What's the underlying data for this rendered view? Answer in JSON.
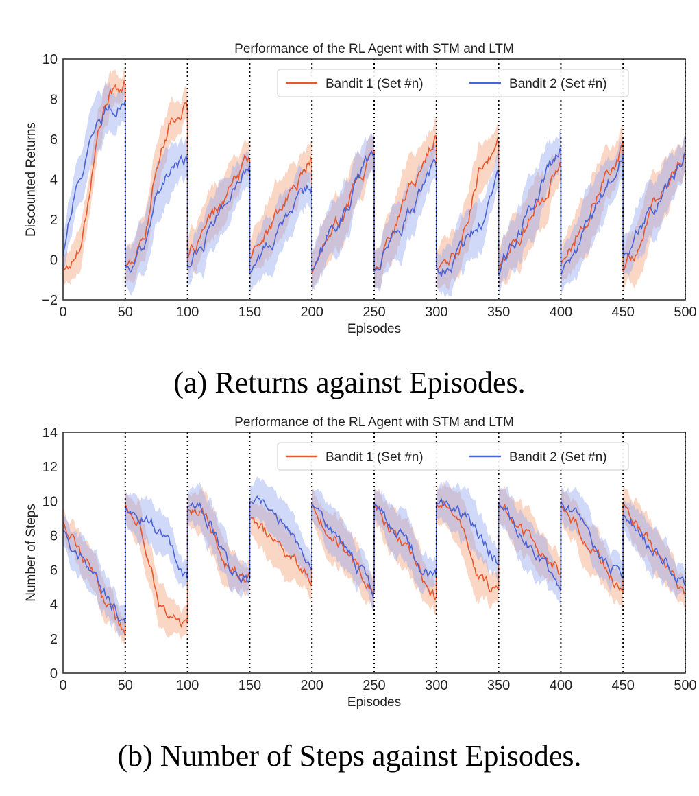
{
  "colors": {
    "bandit1": "#e8582c",
    "bandit1_fill": "#f4a57f",
    "bandit2": "#4a63d6",
    "bandit2_fill": "#9aaaf0",
    "axis": "#222222",
    "divider": "#000000"
  },
  "captions": {
    "a": "(a) Returns against Episodes.",
    "b": "(b) Number of Steps against Episodes."
  },
  "chart_data": [
    {
      "type": "line",
      "title": "Performance of the RL Agent with STM and LTM",
      "xlabel": "Episodes",
      "ylabel": "Discounted Returns",
      "xlim": [
        0,
        500
      ],
      "ylim": [
        -2,
        10
      ],
      "xticks": [
        0,
        50,
        100,
        150,
        200,
        250,
        300,
        350,
        400,
        450,
        500
      ],
      "yticks": [
        -2,
        0,
        2,
        4,
        6,
        8,
        10
      ],
      "ytick_labels": [
        "−2",
        "0",
        "2",
        "4",
        "6",
        "8",
        "10"
      ],
      "vertical_dividers": [
        50,
        100,
        150,
        200,
        250,
        300,
        350,
        400,
        450,
        500
      ],
      "legend": {
        "placement": "top-right",
        "columns": 2
      },
      "grid": false,
      "band": "shaded variability band around each series",
      "series": [
        {
          "name": "Bandit 1 (Set #n)",
          "color": "bandit1",
          "segments": [
            {
              "start": 0,
              "end": 50,
              "y0": -0.5,
              "y1": 8.7,
              "shape": "sigmoid",
              "mid": 0.45,
              "band": 1.0
            },
            {
              "start": 50,
              "end": 100,
              "y0": -0.3,
              "y1": 7.5,
              "shape": "sigmoid",
              "mid": 0.45,
              "band": 1.1
            },
            {
              "start": 100,
              "end": 150,
              "y0": 0.0,
              "y1": 5.0,
              "shape": "linear",
              "mid": 0.5,
              "band": 1.2
            },
            {
              "start": 150,
              "end": 200,
              "y0": 0.0,
              "y1": 5.0,
              "shape": "linear",
              "mid": 0.5,
              "band": 1.3
            },
            {
              "start": 200,
              "end": 250,
              "y0": -0.7,
              "y1": 5.5,
              "shape": "linear",
              "mid": 0.5,
              "band": 1.3
            },
            {
              "start": 250,
              "end": 300,
              "y0": -0.5,
              "y1": 6.2,
              "shape": "linear",
              "mid": 0.5,
              "band": 1.3
            },
            {
              "start": 300,
              "end": 350,
              "y0": -0.4,
              "y1": 5.8,
              "shape": "sigmoid",
              "mid": 0.55,
              "band": 1.3
            },
            {
              "start": 350,
              "end": 400,
              "y0": -0.5,
              "y1": 4.6,
              "shape": "linear",
              "mid": 0.5,
              "band": 1.4
            },
            {
              "start": 400,
              "end": 450,
              "y0": -0.3,
              "y1": 5.8,
              "shape": "linear",
              "mid": 0.5,
              "band": 1.4
            },
            {
              "start": 450,
              "end": 500,
              "y0": -0.6,
              "y1": 5.4,
              "shape": "linear",
              "mid": 0.5,
              "band": 1.4
            }
          ]
        },
        {
          "name": "Bandit 2 (Set #n)",
          "color": "bandit2",
          "segments": [
            {
              "start": 0,
              "end": 50,
              "y0": 0.2,
              "y1": 7.9,
              "shape": "concave",
              "mid": 0.3,
              "band": 1.3
            },
            {
              "start": 50,
              "end": 100,
              "y0": -0.4,
              "y1": 4.8,
              "shape": "sigmoid",
              "mid": 0.45,
              "band": 1.4
            },
            {
              "start": 100,
              "end": 150,
              "y0": -0.4,
              "y1": 4.9,
              "shape": "linear",
              "mid": 0.5,
              "band": 1.2
            },
            {
              "start": 150,
              "end": 200,
              "y0": -0.7,
              "y1": 3.7,
              "shape": "linear",
              "mid": 0.5,
              "band": 1.3
            },
            {
              "start": 200,
              "end": 250,
              "y0": -0.6,
              "y1": 5.3,
              "shape": "linear",
              "mid": 0.5,
              "band": 1.3
            },
            {
              "start": 250,
              "end": 300,
              "y0": -0.6,
              "y1": 4.5,
              "shape": "linear",
              "mid": 0.5,
              "band": 1.3
            },
            {
              "start": 300,
              "end": 350,
              "y0": -0.4,
              "y1": 3.9,
              "shape": "convex",
              "mid": 0.6,
              "band": 1.3
            },
            {
              "start": 350,
              "end": 400,
              "y0": -0.8,
              "y1": 5.6,
              "shape": "linear",
              "mid": 0.5,
              "band": 1.4
            },
            {
              "start": 400,
              "end": 450,
              "y0": -0.8,
              "y1": 5.2,
              "shape": "linear",
              "mid": 0.5,
              "band": 1.4
            },
            {
              "start": 450,
              "end": 500,
              "y0": 0.1,
              "y1": 5.2,
              "shape": "linear",
              "mid": 0.5,
              "band": 1.4
            }
          ]
        }
      ]
    },
    {
      "type": "line",
      "title": "Performance of the RL Agent with STM and LTM",
      "xlabel": "Episodes",
      "ylabel": "Number of Steps",
      "xlim": [
        0,
        500
      ],
      "ylim": [
        0,
        14
      ],
      "xticks": [
        0,
        50,
        100,
        150,
        200,
        250,
        300,
        350,
        400,
        450,
        500
      ],
      "yticks": [
        0,
        2,
        4,
        6,
        8,
        10,
        12,
        14
      ],
      "ytick_labels": [
        "0",
        "2",
        "4",
        "6",
        "8",
        "10",
        "12",
        "14"
      ],
      "vertical_dividers": [
        50,
        100,
        150,
        200,
        250,
        300,
        350,
        400,
        450,
        500
      ],
      "legend": {
        "placement": "top-right",
        "columns": 2
      },
      "grid": false,
      "band": "shaded variability band around each series",
      "series": [
        {
          "name": "Bandit 1 (Set #n)",
          "color": "bandit1",
          "segments": [
            {
              "start": 0,
              "end": 50,
              "y0": 8.8,
              "y1": 2.1,
              "shape": "linear",
              "mid": 0.5,
              "band": 1.0
            },
            {
              "start": 50,
              "end": 100,
              "y0": 9.8,
              "y1": 2.9,
              "shape": "sigmoid",
              "mid": 0.4,
              "band": 1.2
            },
            {
              "start": 100,
              "end": 150,
              "y0": 9.5,
              "y1": 5.5,
              "shape": "sigmoid",
              "mid": 0.5,
              "band": 1.2
            },
            {
              "start": 150,
              "end": 200,
              "y0": 9.0,
              "y1": 5.6,
              "shape": "linear",
              "mid": 0.5,
              "band": 1.4
            },
            {
              "start": 200,
              "end": 250,
              "y0": 9.8,
              "y1": 4.9,
              "shape": "linear",
              "mid": 0.5,
              "band": 1.3
            },
            {
              "start": 250,
              "end": 300,
              "y0": 9.8,
              "y1": 4.5,
              "shape": "linear",
              "mid": 0.5,
              "band": 1.4
            },
            {
              "start": 300,
              "end": 350,
              "y0": 9.8,
              "y1": 4.8,
              "shape": "sigmoid",
              "mid": 0.5,
              "band": 1.4
            },
            {
              "start": 350,
              "end": 400,
              "y0": 9.9,
              "y1": 5.8,
              "shape": "linear",
              "mid": 0.5,
              "band": 1.4
            },
            {
              "start": 400,
              "end": 450,
              "y0": 9.8,
              "y1": 4.6,
              "shape": "linear",
              "mid": 0.5,
              "band": 1.4
            },
            {
              "start": 450,
              "end": 500,
              "y0": 9.8,
              "y1": 4.8,
              "shape": "linear",
              "mid": 0.55,
              "band": 1.3
            }
          ]
        },
        {
          "name": "Bandit 2 (Set #n)",
          "color": "bandit2",
          "segments": [
            {
              "start": 0,
              "end": 50,
              "y0": 8.3,
              "y1": 2.8,
              "shape": "linear",
              "mid": 0.5,
              "band": 1.2
            },
            {
              "start": 50,
              "end": 100,
              "y0": 9.6,
              "y1": 5.4,
              "shape": "convex",
              "mid": 0.5,
              "band": 1.2
            },
            {
              "start": 100,
              "end": 150,
              "y0": 9.7,
              "y1": 5.5,
              "shape": "sigmoid",
              "mid": 0.5,
              "band": 1.2
            },
            {
              "start": 150,
              "end": 200,
              "y0": 10.0,
              "y1": 6.3,
              "shape": "convex",
              "mid": 0.5,
              "band": 1.3
            },
            {
              "start": 200,
              "end": 250,
              "y0": 9.8,
              "y1": 4.8,
              "shape": "linear",
              "mid": 0.5,
              "band": 1.3
            },
            {
              "start": 250,
              "end": 300,
              "y0": 9.9,
              "y1": 5.5,
              "shape": "linear",
              "mid": 0.5,
              "band": 1.3
            },
            {
              "start": 300,
              "end": 350,
              "y0": 9.8,
              "y1": 6.4,
              "shape": "convex",
              "mid": 0.5,
              "band": 1.3
            },
            {
              "start": 350,
              "end": 400,
              "y0": 9.9,
              "y1": 4.8,
              "shape": "linear",
              "mid": 0.5,
              "band": 1.4
            },
            {
              "start": 400,
              "end": 450,
              "y0": 10.0,
              "y1": 5.5,
              "shape": "linear",
              "mid": 0.5,
              "band": 1.3
            },
            {
              "start": 450,
              "end": 500,
              "y0": 9.2,
              "y1": 5.0,
              "shape": "linear",
              "mid": 0.55,
              "band": 1.3
            }
          ]
        }
      ]
    }
  ]
}
